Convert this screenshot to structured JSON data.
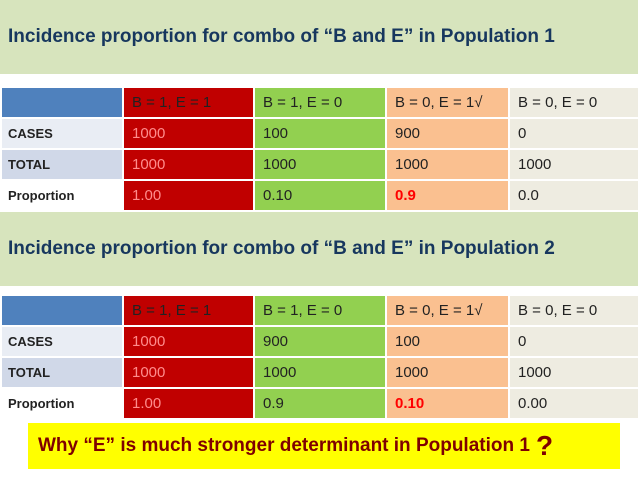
{
  "heading_1": "Incidence proportion for combo of “B and E” in Population 1",
  "table_1": {
    "header": [
      "B = 1, E = 1",
      "B = 1, E = 0",
      "B = 0, E = 1√",
      "B = 0, E = 0"
    ],
    "rows": [
      [
        "CASES",
        "1000",
        "100",
        "900",
        "0"
      ],
      [
        "TOTAL",
        "1000",
        "1000",
        "1000",
        "1000"
      ],
      [
        "Proportion",
        "1.00",
        "0.10",
        "0.9",
        "0.0"
      ]
    ]
  },
  "heading_2": "Incidence proportion for combo of “B and E” in Population 2",
  "table_2": {
    "header": [
      "B = 1, E = 1",
      "B = 1, E = 0",
      "B = 0, E = 1√",
      "B = 0, E = 0"
    ],
    "rows": [
      [
        "CASES",
        "1000",
        "900",
        "100",
        "0"
      ],
      [
        "TOTAL",
        "1000",
        "1000",
        "1000",
        "1000"
      ],
      [
        "Proportion",
        "1.00",
        "0.9",
        "0.10",
        "0.00"
      ]
    ]
  },
  "question": {
    "text": "Why “E” is much stronger determinant in Population 1",
    "mark": "?"
  }
}
